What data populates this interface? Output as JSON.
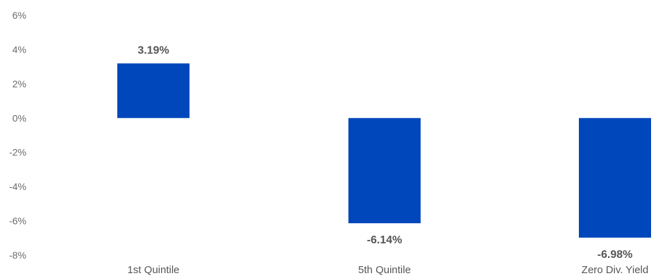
{
  "chart_data": {
    "type": "bar",
    "categories": [
      "1st Quintile",
      "5th Quintile",
      "Zero Div. Yield"
    ],
    "values": [
      3.19,
      -6.14,
      -6.98
    ],
    "data_labels": [
      "3.19%",
      "-6.14%",
      "-6.98%"
    ],
    "title": "",
    "xlabel": "",
    "ylabel": "",
    "ylim": [
      -8,
      6
    ],
    "yticks": [
      6,
      4,
      2,
      0,
      -2,
      -4,
      -6,
      -8
    ],
    "ytick_labels": [
      "6%",
      "4%",
      "2%",
      "0%",
      "-2%",
      "-4%",
      "-6%",
      "-8%"
    ],
    "grid": false,
    "legend": "none",
    "bar_color": "#0047bb"
  }
}
